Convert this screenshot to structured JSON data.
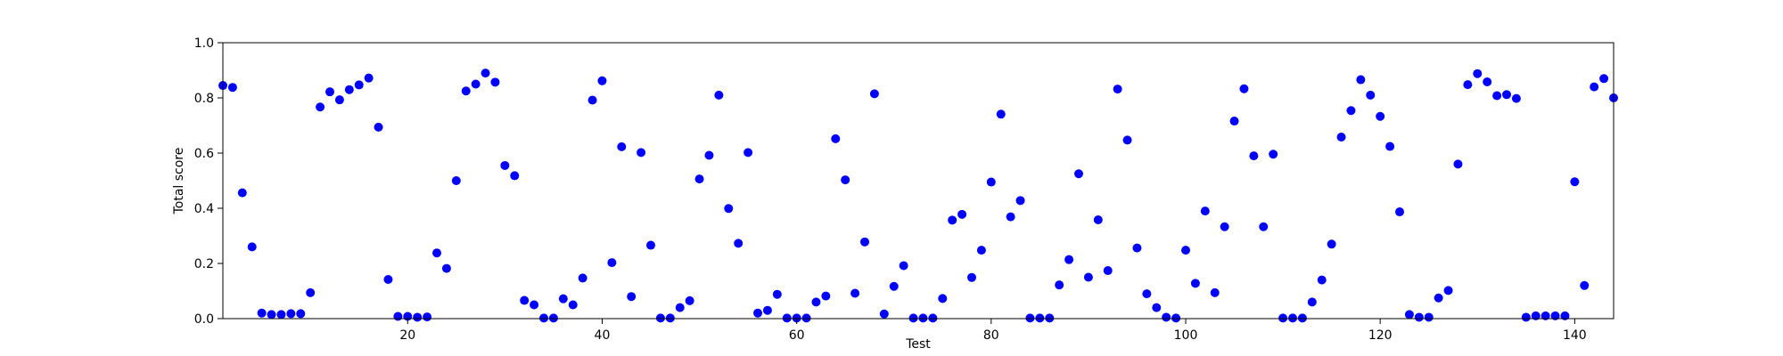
{
  "chart_data": {
    "type": "scatter",
    "xlabel": "Test",
    "ylabel": "Total score",
    "xlim": [
      1,
      144
    ],
    "ylim": [
      0,
      1.0
    ],
    "xticks": [
      20,
      40,
      60,
      80,
      100,
      120,
      140
    ],
    "yticks": [
      0.0,
      0.2,
      0.4,
      0.6,
      0.8,
      1.0
    ],
    "ytick_labels": [
      "0.0",
      "0.2",
      "0.4",
      "0.6",
      "0.8",
      "1.0"
    ],
    "grid": false,
    "marker_color": "#0000ff",
    "x": [
      1,
      2,
      3,
      4,
      5,
      6,
      7,
      8,
      9,
      10,
      11,
      12,
      13,
      14,
      15,
      16,
      17,
      18,
      19,
      20,
      21,
      22,
      23,
      24,
      25,
      26,
      27,
      28,
      29,
      30,
      31,
      32,
      33,
      34,
      35,
      36,
      37,
      38,
      39,
      40,
      41,
      42,
      43,
      44,
      45,
      46,
      47,
      48,
      49,
      50,
      51,
      52,
      53,
      54,
      55,
      56,
      57,
      58,
      59,
      60,
      61,
      62,
      63,
      64,
      65,
      66,
      67,
      68,
      69,
      70,
      71,
      72,
      73,
      74,
      75,
      76,
      77,
      78,
      79,
      80,
      81,
      82,
      83,
      84,
      85,
      86,
      87,
      88,
      89,
      90,
      91,
      92,
      93,
      94,
      95,
      96,
      97,
      98,
      99,
      100,
      101,
      102,
      103,
      104,
      105,
      106,
      107,
      108,
      109,
      110,
      111,
      112,
      113,
      114,
      115,
      116,
      117,
      118,
      119,
      120,
      121,
      122,
      123,
      124,
      125,
      126,
      127,
      128,
      129,
      130,
      131,
      132,
      133,
      134,
      135,
      136,
      137,
      138,
      139,
      140,
      141,
      142,
      143,
      144
    ],
    "y": [
      0.845,
      0.838,
      0.456,
      0.26,
      0.02,
      0.015,
      0.015,
      0.018,
      0.018,
      0.094,
      0.767,
      0.822,
      0.793,
      0.83,
      0.847,
      0.872,
      0.694,
      0.142,
      0.008,
      0.008,
      0.005,
      0.006,
      0.238,
      0.182,
      0.5,
      0.825,
      0.85,
      0.89,
      0.857,
      0.555,
      0.518,
      0.066,
      0.05,
      0.002,
      0.002,
      0.072,
      0.05,
      0.147,
      0.792,
      0.862,
      0.203,
      0.623,
      0.08,
      0.602,
      0.266,
      0.002,
      0.002,
      0.04,
      0.065,
      0.506,
      0.592,
      0.81,
      0.399,
      0.273,
      0.602,
      0.02,
      0.03,
      0.088,
      0.002,
      0.002,
      0.002,
      0.06,
      0.082,
      0.652,
      0.503,
      0.092,
      0.278,
      0.815,
      0.017,
      0.117,
      0.192,
      0.002,
      0.002,
      0.002,
      0.073,
      0.357,
      0.378,
      0.149,
      0.248,
      0.495,
      0.741,
      0.369,
      0.428,
      0.002,
      0.002,
      0.002,
      0.122,
      0.214,
      0.525,
      0.15,
      0.358,
      0.174,
      0.832,
      0.647,
      0.256,
      0.09,
      0.04,
      0.005,
      0.002,
      0.248,
      0.128,
      0.39,
      0.094,
      0.333,
      0.716,
      0.833,
      0.59,
      0.333,
      0.596,
      0.002,
      0.002,
      0.002,
      0.06,
      0.14,
      0.27,
      0.658,
      0.754,
      0.866,
      0.81,
      0.733,
      0.624,
      0.387,
      0.015,
      0.005,
      0.005,
      0.075,
      0.102,
      0.56,
      0.848,
      0.888,
      0.858,
      0.808,
      0.812,
      0.798,
      0.005,
      0.01,
      0.01,
      0.01,
      0.01,
      0.496,
      0.12,
      0.84,
      0.87,
      0.8
    ]
  }
}
